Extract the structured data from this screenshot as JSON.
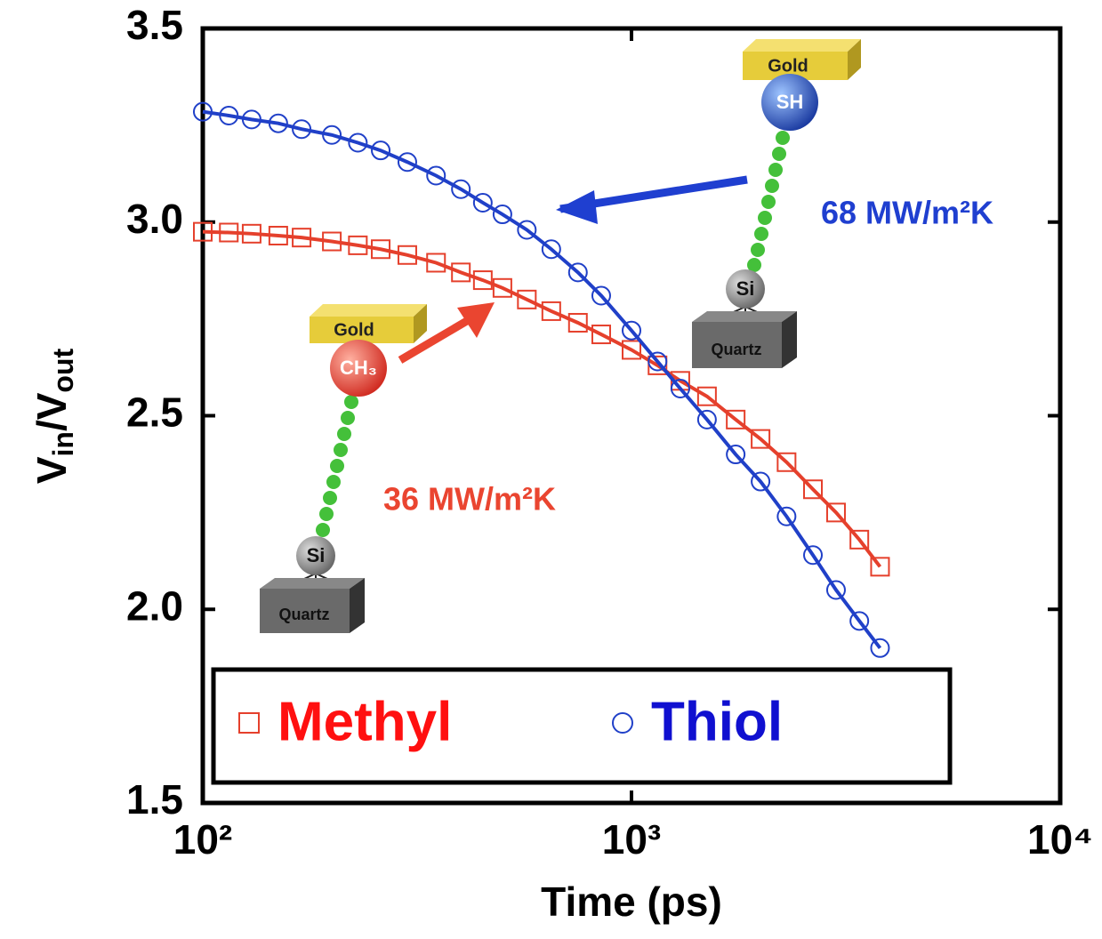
{
  "chart_data": {
    "type": "scatter",
    "x_label": "Time (ps)",
    "y_label_parts": [
      "V",
      "in",
      "/V",
      "out"
    ],
    "xlim": [
      100,
      10000
    ],
    "log_x": true,
    "xticks": [
      {
        "value": 100,
        "label": "10²"
      },
      {
        "value": 1000,
        "label": "10³"
      },
      {
        "value": 10000,
        "label": "10⁴"
      }
    ],
    "ylim": [
      1.5,
      3.5
    ],
    "yticks": [
      1.5,
      {
        "value": 2,
        "label": "2.0"
      },
      2.5,
      {
        "value": 3,
        "label": "3.0"
      },
      3.5
    ],
    "x": [
      100,
      115,
      130,
      150,
      170,
      200,
      230,
      260,
      300,
      350,
      400,
      450,
      500,
      570,
      650,
      750,
      850,
      1000,
      1150,
      1300,
      1500,
      1750,
      2000,
      2300,
      2650,
      3000,
      3400,
      3800
    ],
    "series": [
      {
        "name": "Methyl",
        "color": "#e5402c",
        "legend_color": "#ff1010",
        "marker": "square",
        "values": [
          2.975,
          2.973,
          2.97,
          2.965,
          2.96,
          2.95,
          2.94,
          2.93,
          2.915,
          2.895,
          2.87,
          2.85,
          2.83,
          2.8,
          2.77,
          2.74,
          2.71,
          2.67,
          2.63,
          2.59,
          2.55,
          2.49,
          2.44,
          2.38,
          2.31,
          2.25,
          2.18,
          2.11
        ]
      },
      {
        "name": "Thiol",
        "color": "#2040c8",
        "legend_color": "#1010d0",
        "marker": "circle",
        "values": [
          3.285,
          3.275,
          3.265,
          3.255,
          3.24,
          3.225,
          3.205,
          3.185,
          3.155,
          3.12,
          3.085,
          3.05,
          3.02,
          2.98,
          2.93,
          2.87,
          2.81,
          2.72,
          2.64,
          2.57,
          2.49,
          2.4,
          2.33,
          2.24,
          2.14,
          2.05,
          1.97,
          1.9
        ]
      }
    ],
    "annotations": {
      "thiol_conductance": "68 MW/m²K",
      "methyl_conductance": "36 MW/m²K",
      "gold_1": "Gold",
      "sh": "SH",
      "si_1": "Si",
      "quartz_1": "Quartz",
      "gold_2": "Gold",
      "ch3": "CH₃",
      "si_2": "Si",
      "quartz_2": "Quartz"
    }
  }
}
